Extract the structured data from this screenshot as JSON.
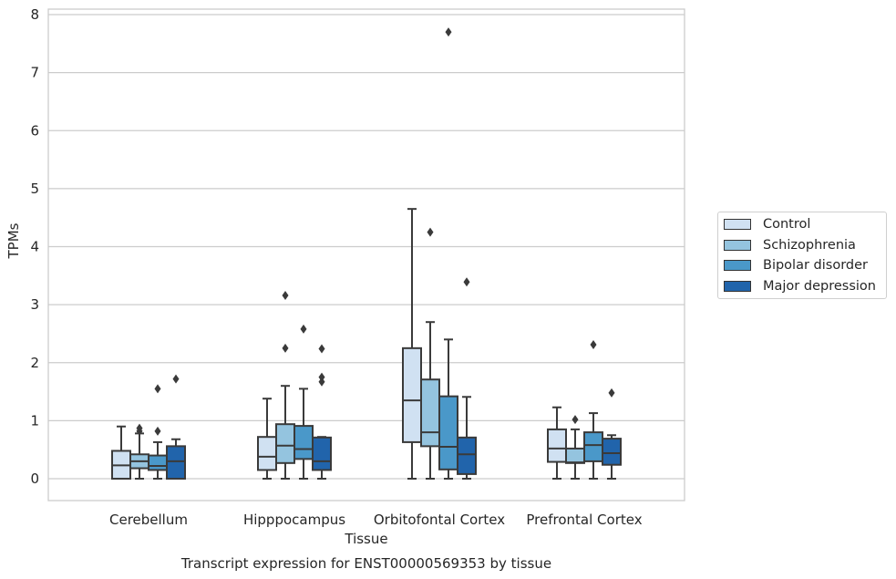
{
  "chart_data": {
    "type": "boxplot",
    "title": "Transcript expression for ENST00000569353 by tissue",
    "xlabel": "Tissue",
    "ylabel": "TPMs",
    "ylim": [
      -0.37,
      8.15
    ],
    "yticks": [
      0,
      1,
      2,
      3,
      4,
      5,
      6,
      7,
      8
    ],
    "grid": "horizontal",
    "legend_position": "right",
    "categories": [
      "Cerebellum",
      "Hipppocampus",
      "Orbitofontal Cortex",
      "Prefrontal Cortex"
    ],
    "series": [
      {
        "name": "Control",
        "color": "#d0e1f2",
        "boxes": [
          {
            "whislo": 0.0,
            "q1": 0.0,
            "med": 0.23,
            "q3": 0.48,
            "whishi": 0.9,
            "fliers": []
          },
          {
            "whislo": 0.0,
            "q1": 0.15,
            "med": 0.38,
            "q3": 0.72,
            "whishi": 1.38,
            "fliers": []
          },
          {
            "whislo": 0.0,
            "q1": 0.63,
            "med": 1.35,
            "q3": 2.25,
            "whishi": 4.65,
            "fliers": []
          },
          {
            "whislo": 0.0,
            "q1": 0.29,
            "med": 0.52,
            "q3": 0.85,
            "whishi": 1.23,
            "fliers": []
          }
        ]
      },
      {
        "name": "Schizophrenia",
        "color": "#94c4df",
        "boxes": [
          {
            "whislo": 0.0,
            "q1": 0.18,
            "med": 0.3,
            "q3": 0.42,
            "whishi": 0.78,
            "fliers": [
              0.82,
              0.87
            ]
          },
          {
            "whislo": 0.0,
            "q1": 0.27,
            "med": 0.57,
            "q3": 0.94,
            "whishi": 1.6,
            "fliers": [
              2.25,
              3.16
            ]
          },
          {
            "whislo": 0.0,
            "q1": 0.56,
            "med": 0.8,
            "q3": 1.71,
            "whishi": 2.7,
            "fliers": [
              4.25
            ]
          },
          {
            "whislo": 0.0,
            "q1": 0.27,
            "med": 0.28,
            "q3": 0.52,
            "whishi": 0.85,
            "fliers": [
              1.02
            ]
          }
        ]
      },
      {
        "name": "Bipolar disorder",
        "color": "#4a98c9",
        "boxes": [
          {
            "whislo": 0.0,
            "q1": 0.15,
            "med": 0.22,
            "q3": 0.4,
            "whishi": 0.63,
            "fliers": [
              0.82,
              1.55
            ]
          },
          {
            "whislo": 0.0,
            "q1": 0.34,
            "med": 0.51,
            "q3": 0.91,
            "whishi": 1.55,
            "fliers": [
              2.58
            ]
          },
          {
            "whislo": 0.0,
            "q1": 0.16,
            "med": 0.55,
            "q3": 1.42,
            "whishi": 2.4,
            "fliers": [
              7.7
            ]
          },
          {
            "whislo": 0.0,
            "q1": 0.3,
            "med": 0.58,
            "q3": 0.8,
            "whishi": 1.13,
            "fliers": [
              2.31
            ]
          }
        ]
      },
      {
        "name": "Major depression",
        "color": "#2164ab",
        "boxes": [
          {
            "whislo": 0.0,
            "q1": 0.0,
            "med": 0.3,
            "q3": 0.56,
            "whishi": 0.68,
            "fliers": [
              1.72
            ]
          },
          {
            "whislo": 0.0,
            "q1": 0.15,
            "med": 0.3,
            "q3": 0.71,
            "whishi": 0.72,
            "fliers": [
              1.67,
              1.75,
              2.24
            ]
          },
          {
            "whislo": 0.0,
            "q1": 0.08,
            "med": 0.42,
            "q3": 0.71,
            "whishi": 1.41,
            "fliers": [
              3.39
            ]
          },
          {
            "whislo": 0.0,
            "q1": 0.24,
            "med": 0.44,
            "q3": 0.69,
            "whishi": 0.75,
            "fliers": [
              1.48
            ]
          }
        ]
      }
    ]
  }
}
